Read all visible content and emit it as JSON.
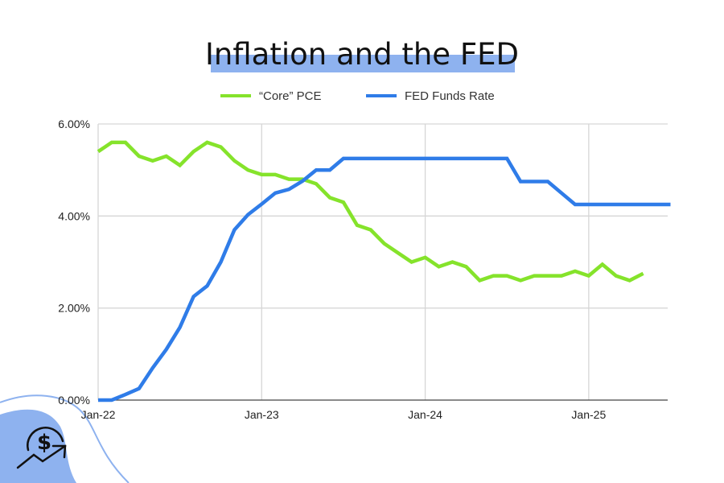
{
  "chart_data": {
    "type": "line",
    "title": "Inflation and the FED",
    "xlabel": "",
    "ylabel": "",
    "x_start": "Jan-22",
    "x_tick_labels": [
      "Jan-22",
      "Jan-23",
      "Jan-24",
      "Jan-25"
    ],
    "y_tick_labels": [
      "0.00%",
      "2.00%",
      "4.00%",
      "6.00%"
    ],
    "ylim": [
      0,
      6
    ],
    "grid": true,
    "legend_position": "top",
    "series": [
      {
        "name": "“Core” PCE",
        "color": "#85e32b",
        "values": [
          5.4,
          5.6,
          5.6,
          5.3,
          5.2,
          5.3,
          5.1,
          5.4,
          5.6,
          5.5,
          5.2,
          5.0,
          4.9,
          4.9,
          4.8,
          4.8,
          4.7,
          4.4,
          4.3,
          3.8,
          3.7,
          3.4,
          3.2,
          3.0,
          3.1,
          2.9,
          3.0,
          2.9,
          2.6,
          2.7,
          2.7,
          2.6,
          2.7,
          2.7,
          2.7,
          2.8,
          2.7,
          2.95,
          2.7,
          2.6,
          2.75
        ]
      },
      {
        "name": "FED Funds Rate",
        "color": "#2f7ce8",
        "values": [
          0,
          0,
          0.12,
          0.25,
          0.7,
          1.1,
          1.58,
          2.25,
          2.48,
          3.0,
          3.7,
          4.03,
          4.26,
          4.5,
          4.58,
          4.76,
          5.0,
          5.0,
          5.25,
          5.25,
          5.25,
          5.25,
          5.25,
          5.25,
          5.25,
          5.25,
          5.25,
          5.25,
          5.25,
          5.25,
          5.25,
          4.75,
          4.75,
          4.75,
          4.5,
          4.25,
          4.25,
          4.25,
          4.25,
          4.25,
          4.25,
          4.25,
          4.25
        ]
      }
    ]
  },
  "decor": {
    "highlight_color": "#8eb2ef",
    "blob_color": "#8eb2ef",
    "icon": "dollar-growth-icon"
  }
}
